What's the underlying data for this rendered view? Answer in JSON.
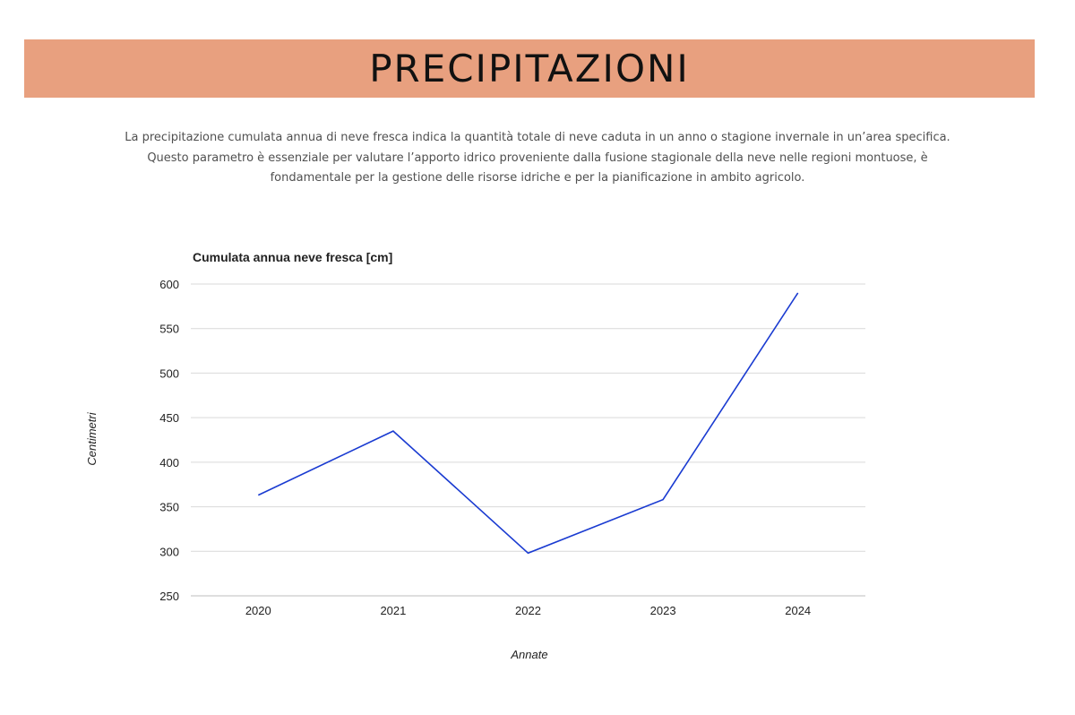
{
  "page": {
    "title": "PRECIPITAZIONI",
    "description": [
      "La precipitazione cumulata annua di neve fresca indica la quantità totale di neve caduta in un anno o stagione invernale in un’area specifica.",
      "Questo parametro è essenziale per valutare l’apporto idrico proveniente dalla fusione stagionale della neve nelle regioni montuose, è",
      "fondamentale per la gestione delle risorse idriche e per la pianificazione in ambito agricolo."
    ]
  },
  "colors": {
    "banner": "#e8a07f",
    "line": "#1a3bd1",
    "grid": "#d9d9d9"
  },
  "chart_data": {
    "type": "line",
    "title": "Cumulata annua neve fresca [cm]",
    "xlabel": "Annate",
    "ylabel": "Centimetri",
    "categories": [
      "2020",
      "2021",
      "2022",
      "2023",
      "2024"
    ],
    "series": [
      {
        "values": [
          363,
          435,
          298,
          358,
          590
        ]
      }
    ],
    "ylim": [
      250,
      600
    ],
    "yticks": [
      250,
      300,
      350,
      400,
      450,
      500,
      550,
      600
    ],
    "grid": true,
    "legend": "none"
  }
}
